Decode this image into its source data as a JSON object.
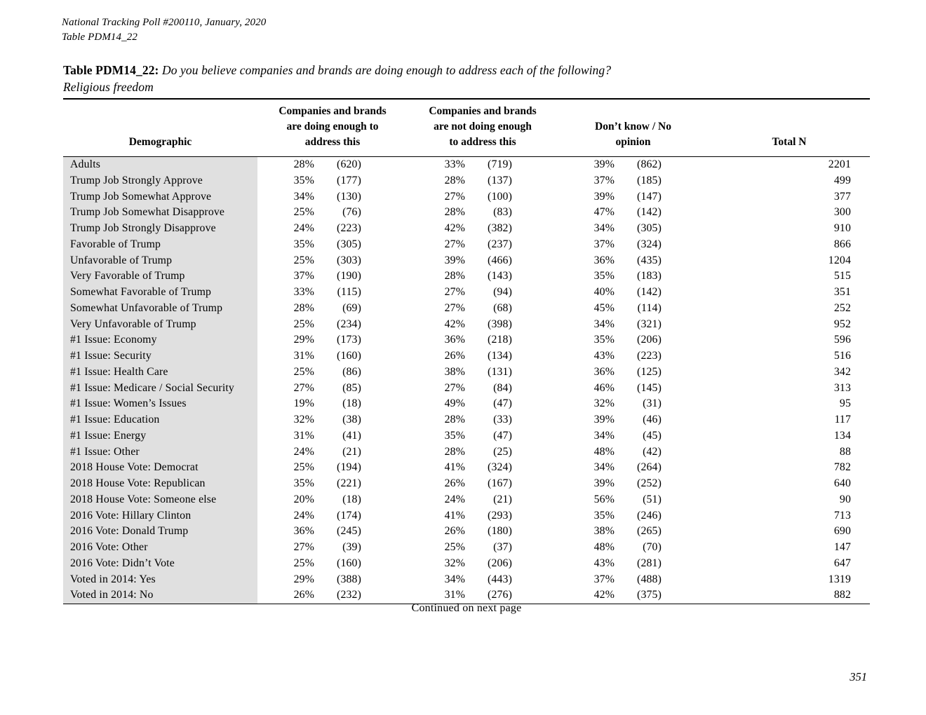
{
  "document": {
    "meta_line1": "National Tracking Poll #200110, January, 2020",
    "meta_line2": "Table PDM14_22",
    "title_prefix": "Table PDM14_22:",
    "title_question": "Do you believe companies and brands are doing enough to address each of the following?",
    "title_subtitle": "Religious freedom",
    "continued_note": "Continued on next page",
    "page_number": "351"
  },
  "table": {
    "header": {
      "demographic": "Demographic",
      "group1_lines": [
        "Companies and brands",
        "are doing enough to",
        "address this"
      ],
      "group2_lines": [
        "Companies and brands",
        "are not doing enough",
        "to address this"
      ],
      "group3_lines": [
        "Don’t know / No",
        "opinion"
      ],
      "total": "Total N"
    },
    "rows": [
      {
        "label": "Adults",
        "pct1": "28%",
        "n1": "(620)",
        "pct2": "33%",
        "n2": "(719)",
        "pct3": "39%",
        "n3": "(862)",
        "total": "2201"
      },
      {
        "label": "Trump Job Strongly Approve",
        "pct1": "35%",
        "n1": "(177)",
        "pct2": "28%",
        "n2": "(137)",
        "pct3": "37%",
        "n3": "(185)",
        "total": "499"
      },
      {
        "label": "Trump Job Somewhat Approve",
        "pct1": "34%",
        "n1": "(130)",
        "pct2": "27%",
        "n2": "(100)",
        "pct3": "39%",
        "n3": "(147)",
        "total": "377"
      },
      {
        "label": "Trump Job Somewhat Disapprove",
        "pct1": "25%",
        "n1": "(76)",
        "pct2": "28%",
        "n2": "(83)",
        "pct3": "47%",
        "n3": "(142)",
        "total": "300"
      },
      {
        "label": "Trump Job Strongly Disapprove",
        "pct1": "24%",
        "n1": "(223)",
        "pct2": "42%",
        "n2": "(382)",
        "pct3": "34%",
        "n3": "(305)",
        "total": "910"
      },
      {
        "label": "Favorable of Trump",
        "pct1": "35%",
        "n1": "(305)",
        "pct2": "27%",
        "n2": "(237)",
        "pct3": "37%",
        "n3": "(324)",
        "total": "866"
      },
      {
        "label": "Unfavorable of Trump",
        "pct1": "25%",
        "n1": "(303)",
        "pct2": "39%",
        "n2": "(466)",
        "pct3": "36%",
        "n3": "(435)",
        "total": "1204"
      },
      {
        "label": "Very Favorable of Trump",
        "pct1": "37%",
        "n1": "(190)",
        "pct2": "28%",
        "n2": "(143)",
        "pct3": "35%",
        "n3": "(183)",
        "total": "515"
      },
      {
        "label": "Somewhat Favorable of Trump",
        "pct1": "33%",
        "n1": "(115)",
        "pct2": "27%",
        "n2": "(94)",
        "pct3": "40%",
        "n3": "(142)",
        "total": "351"
      },
      {
        "label": "Somewhat Unfavorable of Trump",
        "pct1": "28%",
        "n1": "(69)",
        "pct2": "27%",
        "n2": "(68)",
        "pct3": "45%",
        "n3": "(114)",
        "total": "252"
      },
      {
        "label": "Very Unfavorable of Trump",
        "pct1": "25%",
        "n1": "(234)",
        "pct2": "42%",
        "n2": "(398)",
        "pct3": "34%",
        "n3": "(321)",
        "total": "952"
      },
      {
        "label": "#1 Issue: Economy",
        "pct1": "29%",
        "n1": "(173)",
        "pct2": "36%",
        "n2": "(218)",
        "pct3": "35%",
        "n3": "(206)",
        "total": "596"
      },
      {
        "label": "#1 Issue: Security",
        "pct1": "31%",
        "n1": "(160)",
        "pct2": "26%",
        "n2": "(134)",
        "pct3": "43%",
        "n3": "(223)",
        "total": "516"
      },
      {
        "label": "#1 Issue: Health Care",
        "pct1": "25%",
        "n1": "(86)",
        "pct2": "38%",
        "n2": "(131)",
        "pct3": "36%",
        "n3": "(125)",
        "total": "342"
      },
      {
        "label": "#1 Issue: Medicare / Social Security",
        "pct1": "27%",
        "n1": "(85)",
        "pct2": "27%",
        "n2": "(84)",
        "pct3": "46%",
        "n3": "(145)",
        "total": "313"
      },
      {
        "label": "#1 Issue: Women’s Issues",
        "pct1": "19%",
        "n1": "(18)",
        "pct2": "49%",
        "n2": "(47)",
        "pct3": "32%",
        "n3": "(31)",
        "total": "95"
      },
      {
        "label": "#1 Issue: Education",
        "pct1": "32%",
        "n1": "(38)",
        "pct2": "28%",
        "n2": "(33)",
        "pct3": "39%",
        "n3": "(46)",
        "total": "117"
      },
      {
        "label": "#1 Issue: Energy",
        "pct1": "31%",
        "n1": "(41)",
        "pct2": "35%",
        "n2": "(47)",
        "pct3": "34%",
        "n3": "(45)",
        "total": "134"
      },
      {
        "label": "#1 Issue: Other",
        "pct1": "24%",
        "n1": "(21)",
        "pct2": "28%",
        "n2": "(25)",
        "pct3": "48%",
        "n3": "(42)",
        "total": "88"
      },
      {
        "label": "2018 House Vote: Democrat",
        "pct1": "25%",
        "n1": "(194)",
        "pct2": "41%",
        "n2": "(324)",
        "pct3": "34%",
        "n3": "(264)",
        "total": "782"
      },
      {
        "label": "2018 House Vote: Republican",
        "pct1": "35%",
        "n1": "(221)",
        "pct2": "26%",
        "n2": "(167)",
        "pct3": "39%",
        "n3": "(252)",
        "total": "640"
      },
      {
        "label": "2018 House Vote: Someone else",
        "pct1": "20%",
        "n1": "(18)",
        "pct2": "24%",
        "n2": "(21)",
        "pct3": "56%",
        "n3": "(51)",
        "total": "90"
      },
      {
        "label": "2016 Vote: Hillary Clinton",
        "pct1": "24%",
        "n1": "(174)",
        "pct2": "41%",
        "n2": "(293)",
        "pct3": "35%",
        "n3": "(246)",
        "total": "713"
      },
      {
        "label": "2016 Vote: Donald Trump",
        "pct1": "36%",
        "n1": "(245)",
        "pct2": "26%",
        "n2": "(180)",
        "pct3": "38%",
        "n3": "(265)",
        "total": "690"
      },
      {
        "label": "2016 Vote: Other",
        "pct1": "27%",
        "n1": "(39)",
        "pct2": "25%",
        "n2": "(37)",
        "pct3": "48%",
        "n3": "(70)",
        "total": "147"
      },
      {
        "label": "2016 Vote: Didn’t Vote",
        "pct1": "25%",
        "n1": "(160)",
        "pct2": "32%",
        "n2": "(206)",
        "pct3": "43%",
        "n3": "(281)",
        "total": "647"
      },
      {
        "label": "Voted in 2014: Yes",
        "pct1": "29%",
        "n1": "(388)",
        "pct2": "34%",
        "n2": "(443)",
        "pct3": "37%",
        "n3": "(488)",
        "total": "1319"
      },
      {
        "label": "Voted in 2014: No",
        "pct1": "26%",
        "n1": "(232)",
        "pct2": "31%",
        "n2": "(276)",
        "pct3": "42%",
        "n3": "(375)",
        "total": "882"
      }
    ]
  },
  "colors": {
    "label_column_bg": "#e0e0e0",
    "text": "#000000",
    "rule": "#000000"
  }
}
